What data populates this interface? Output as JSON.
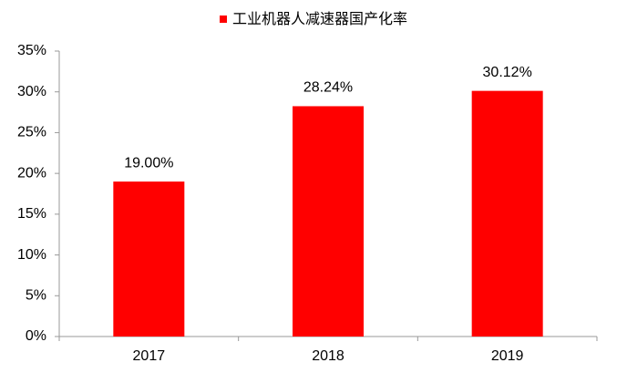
{
  "chart_data": {
    "type": "bar",
    "categories": [
      "2017",
      "2018",
      "2019"
    ],
    "series": [
      {
        "name": "工业机器人减速器国产化率",
        "color": "#ff0000",
        "values": [
          19.0,
          28.24,
          30.12
        ],
        "value_labels": [
          "19.00%",
          "28.24%",
          "30.12%"
        ]
      }
    ],
    "ylim": [
      0,
      35
    ],
    "yticks": [
      {
        "value": 0,
        "label": "0%"
      },
      {
        "value": 5,
        "label": "5%"
      },
      {
        "value": 10,
        "label": "10%"
      },
      {
        "value": 15,
        "label": "15%"
      },
      {
        "value": 20,
        "label": "20%"
      },
      {
        "value": 25,
        "label": "25%"
      },
      {
        "value": 30,
        "label": "30%"
      },
      {
        "value": 35,
        "label": "35%"
      }
    ],
    "grid": false,
    "legend": "top"
  }
}
